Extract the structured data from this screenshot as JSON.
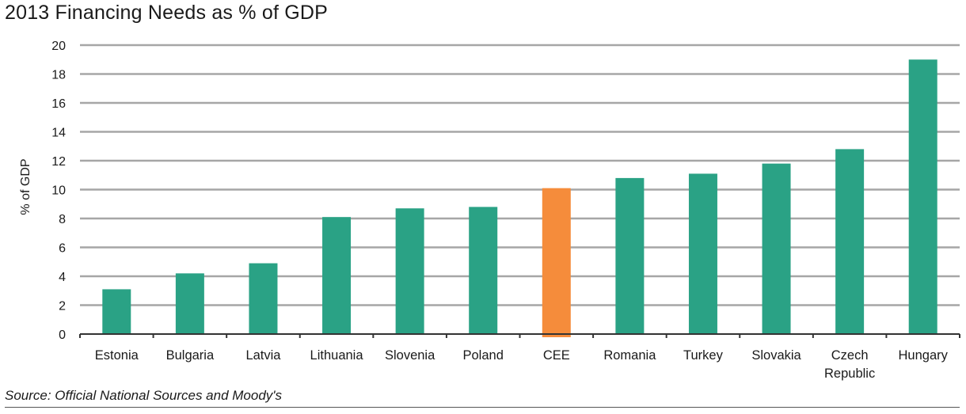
{
  "colors": {
    "bar": "#2aa285",
    "highlight": "#f58c3b",
    "grid": "#a6a6a6",
    "axis": "#333333"
  },
  "source": "Source: Official National Sources and Moody's",
  "chart_data": {
    "type": "bar",
    "title": "2013 Financing Needs as % of GDP",
    "xlabel": "",
    "ylabel": "% of GDP",
    "ylim": [
      0,
      20
    ],
    "yticks": [
      0,
      2,
      4,
      6,
      8,
      10,
      12,
      14,
      16,
      18,
      20
    ],
    "grid": true,
    "highlight_category": "CEE",
    "categories": [
      "Estonia",
      "Bulgaria",
      "Latvia",
      "Lithuania",
      "Slovenia",
      "Poland",
      "CEE",
      "Romania",
      "Turkey",
      "Slovakia",
      "Czech Republic",
      "Hungary"
    ],
    "category_label_lines": [
      [
        "Estonia"
      ],
      [
        "Bulgaria"
      ],
      [
        "Latvia"
      ],
      [
        "Lithuania"
      ],
      [
        "Slovenia"
      ],
      [
        "Poland"
      ],
      [
        "CEE"
      ],
      [
        "Romania"
      ],
      [
        "Turkey"
      ],
      [
        "Slovakia"
      ],
      [
        "Czech",
        "Republic"
      ],
      [
        "Hungary"
      ]
    ],
    "values": [
      3.1,
      4.2,
      4.9,
      8.1,
      8.7,
      8.8,
      10.1,
      10.8,
      11.1,
      11.8,
      12.8,
      19.0
    ]
  }
}
